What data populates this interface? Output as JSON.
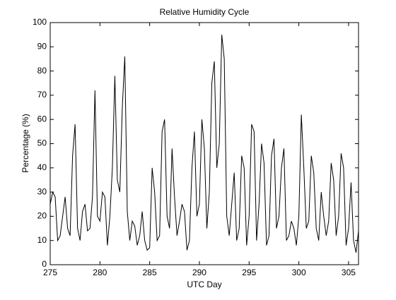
{
  "chart_data": {
    "type": "line",
    "title": "Relative Humidity Cycle",
    "x_label": "UTC Day",
    "y_label": "Percentage (%)",
    "x": [
      275,
      275.25,
      275.5,
      275.75,
      276,
      276.25,
      276.5,
      276.75,
      277,
      277.25,
      277.5,
      277.75,
      278,
      278.25,
      278.5,
      278.75,
      279,
      279.25,
      279.5,
      279.75,
      280,
      280.25,
      280.5,
      280.75,
      281,
      281.25,
      281.5,
      281.75,
      282,
      282.25,
      282.5,
      282.75,
      283,
      283.25,
      283.5,
      283.75,
      284,
      284.25,
      284.5,
      284.75,
      285,
      285.25,
      285.5,
      285.75,
      286,
      286.25,
      286.5,
      286.75,
      287,
      287.25,
      287.5,
      287.75,
      288,
      288.25,
      288.5,
      288.75,
      289,
      289.25,
      289.5,
      289.75,
      290,
      290.25,
      290.5,
      290.75,
      291,
      291.25,
      291.5,
      291.75,
      292,
      292.25,
      292.5,
      292.75,
      293,
      293.25,
      293.5,
      293.75,
      294,
      294.25,
      294.5,
      294.75,
      295,
      295.25,
      295.5,
      295.75,
      296,
      296.25,
      296.5,
      296.75,
      297,
      297.25,
      297.5,
      297.75,
      298,
      298.25,
      298.5,
      298.75,
      299,
      299.25,
      299.5,
      299.75,
      300,
      300.25,
      300.5,
      300.75,
      301,
      301.25,
      301.5,
      301.75,
      302,
      302.25,
      302.5,
      302.75,
      303,
      303.25,
      303.5,
      303.75,
      304,
      304.25,
      304.5,
      304.75,
      305,
      305.25,
      305.5,
      305.75,
      306
    ],
    "series": [
      {
        "name": "Relative Humidity",
        "color": "#000000",
        "values": [
          25,
          30,
          28,
          10,
          12,
          20,
          28,
          15,
          12,
          45,
          58,
          15,
          10,
          22,
          25,
          14,
          15,
          28,
          72,
          20,
          18,
          30,
          28,
          8,
          20,
          40,
          78,
          35,
          30,
          65,
          86,
          22,
          10,
          18,
          16,
          8,
          12,
          22,
          10,
          6,
          7,
          40,
          30,
          10,
          12,
          55,
          60,
          20,
          15,
          48,
          28,
          12,
          18,
          25,
          22,
          6,
          10,
          40,
          55,
          20,
          25,
          60,
          48,
          15,
          30,
          75,
          84,
          40,
          50,
          95,
          85,
          20,
          12,
          25,
          38,
          10,
          15,
          45,
          40,
          8,
          20,
          58,
          55,
          10,
          25,
          50,
          42,
          8,
          12,
          45,
          52,
          15,
          20,
          40,
          48,
          10,
          12,
          18,
          15,
          8,
          20,
          62,
          40,
          15,
          18,
          45,
          38,
          15,
          10,
          30,
          20,
          12,
          18,
          42,
          35,
          12,
          20,
          46,
          40,
          8,
          15,
          34,
          10,
          5,
          14
        ]
      }
    ],
    "xlim": [
      275,
      306
    ],
    "xticks": [
      275,
      280,
      285,
      290,
      295,
      300,
      305
    ],
    "ylim": [
      0,
      100
    ],
    "yticks": [
      0,
      10,
      20,
      30,
      40,
      50,
      60,
      70,
      80,
      90,
      100
    ]
  }
}
